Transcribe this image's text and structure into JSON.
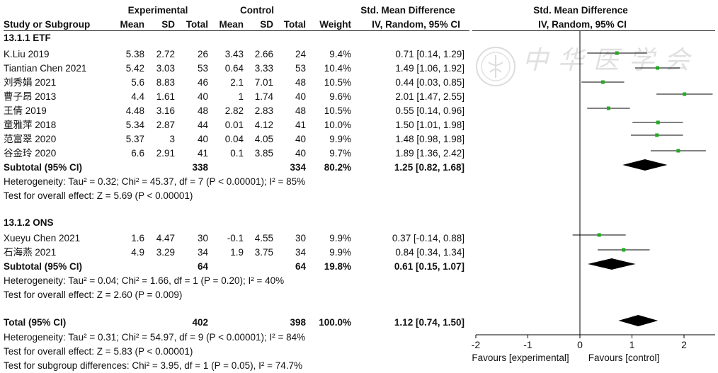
{
  "headers": {
    "experimental": "Experimental",
    "control": "Control",
    "smd_left": "Std. Mean Difference",
    "smd_right": "Std. Mean Difference",
    "study": "Study or Subgroup",
    "mean1": "Mean",
    "sd1": "SD",
    "total1": "Total",
    "mean2": "Mean",
    "sd2": "SD",
    "total2": "Total",
    "weight": "Weight",
    "method_left": "IV, Random, 95% CI",
    "method_right": "IV, Random, 95% CI"
  },
  "groups": [
    {
      "title": "13.1.1 ETF",
      "studies": [
        {
          "name": "K.Liu 2019",
          "m1": "5.38",
          "sd1": "2.72",
          "n1": "26",
          "m2": "3.43",
          "sd2": "2.66",
          "n2": "24",
          "w": "9.4%",
          "ci": "0.71 [0.14, 1.29]"
        },
        {
          "name": "Tiantian Chen 2021",
          "m1": "5.42",
          "sd1": "3.03",
          "n1": "53",
          "m2": "0.64",
          "sd2": "3.33",
          "n2": "53",
          "w": "10.4%",
          "ci": "1.49 [1.06, 1.92]"
        },
        {
          "name": "刘秀娟 2021",
          "m1": "5.6",
          "sd1": "8.83",
          "n1": "46",
          "m2": "2.1",
          "sd2": "7.01",
          "n2": "48",
          "w": "10.5%",
          "ci": "0.44 [0.03, 0.85]"
        },
        {
          "name": "曹子昂 2013",
          "m1": "4.4",
          "sd1": "1.61",
          "n1": "40",
          "m2": "1",
          "sd2": "1.74",
          "n2": "40",
          "w": "9.6%",
          "ci": "2.01 [1.47, 2.55]"
        },
        {
          "name": "王倩 2019",
          "m1": "4.48",
          "sd1": "3.16",
          "n1": "48",
          "m2": "2.82",
          "sd2": "2.83",
          "n2": "48",
          "w": "10.5%",
          "ci": "0.55 [0.14, 0.96]"
        },
        {
          "name": "童雅萍 2018",
          "m1": "5.34",
          "sd1": "2.87",
          "n1": "44",
          "m2": "0.01",
          "sd2": "4.12",
          "n2": "41",
          "w": "10.0%",
          "ci": "1.50 [1.01, 1.98]"
        },
        {
          "name": "范富翠 2020",
          "m1": "5.37",
          "sd1": "3",
          "n1": "40",
          "m2": "0.04",
          "sd2": "4.05",
          "n2": "40",
          "w": "9.9%",
          "ci": "1.48 [0.98, 1.98]"
        },
        {
          "name": "谷金玲 2020",
          "m1": "6.6",
          "sd1": "2.91",
          "n1": "41",
          "m2": "0.1",
          "sd2": "3.85",
          "n2": "40",
          "w": "9.7%",
          "ci": "1.89 [1.36, 2.42]"
        }
      ],
      "subtotal": {
        "label": "Subtotal (95% CI)",
        "n1": "338",
        "n2": "334",
        "w": "80.2%",
        "ci": "1.25 [0.82, 1.68]"
      },
      "heterogeneity": "Heterogeneity: Tau² = 0.32; Chi² = 45.37, df = 7 (P < 0.00001); I² = 85%",
      "overall": "Test for overall effect: Z = 5.69 (P < 0.00001)"
    },
    {
      "title": "13.1.2 ONS",
      "studies": [
        {
          "name": "Xueyu Chen 2021",
          "m1": "1.6",
          "sd1": "4.47",
          "n1": "30",
          "m2": "-0.1",
          "sd2": "4.55",
          "n2": "30",
          "w": "9.9%",
          "ci": "0.37 [-0.14, 0.88]"
        },
        {
          "name": "石海燕 2021",
          "m1": "4.9",
          "sd1": "3.29",
          "n1": "34",
          "m2": "1.9",
          "sd2": "3.75",
          "n2": "34",
          "w": "9.9%",
          "ci": "0.84 [0.34, 1.34]"
        }
      ],
      "subtotal": {
        "label": "Subtotal (95% CI)",
        "n1": "64",
        "n2": "64",
        "w": "19.8%",
        "ci": "0.61 [0.15, 1.07]"
      },
      "heterogeneity": "Heterogeneity: Tau² = 0.04; Chi² = 1.66, df = 1 (P = 0.20); I² = 40%",
      "overall": "Test for overall effect: Z = 2.60 (P = 0.009)"
    }
  ],
  "total": {
    "label": "Total (95% CI)",
    "n1": "402",
    "n2": "398",
    "w": "100.0%",
    "ci": "1.12 [0.74, 1.50]"
  },
  "total_heterogeneity": "Heterogeneity: Tau² = 0.31; Chi² = 54.97, df = 9 (P < 0.00001); I² = 84%",
  "total_overall": "Test for overall effect: Z = 5.83 (P < 0.00001)",
  "subgroup_diff": "Test for subgroup differences: Chi² = 3.95, df = 1 (P = 0.05), I² = 74.7%",
  "watermark": "中华医学会",
  "axis": {
    "ticks": [
      "-2",
      "-1",
      "0",
      "1",
      "2"
    ],
    "favours_left": "Favours [experimental]",
    "favours_right": "Favours [control]"
  },
  "colors": {
    "point": "#22aa22",
    "diamond": "#000000",
    "line": "#000000"
  },
  "chart_data": {
    "type": "scatter",
    "xlim": [
      -2,
      2
    ],
    "studies": [
      {
        "name": "K.Liu 2019",
        "x": 0.71,
        "lo": 0.14,
        "hi": 1.29
      },
      {
        "name": "Tiantian Chen 2021",
        "x": 1.49,
        "lo": 1.06,
        "hi": 1.92
      },
      {
        "name": "刘秀娟 2021",
        "x": 0.44,
        "lo": 0.03,
        "hi": 0.85
      },
      {
        "name": "曹子昂 2013",
        "x": 2.01,
        "lo": 1.47,
        "hi": 2.55
      },
      {
        "name": "王倩 2019",
        "x": 0.55,
        "lo": 0.14,
        "hi": 0.96
      },
      {
        "name": "童雅萍 2018",
        "x": 1.5,
        "lo": 1.01,
        "hi": 1.98
      },
      {
        "name": "范富翠 2020",
        "x": 1.48,
        "lo": 0.98,
        "hi": 1.98
      },
      {
        "name": "谷金玲 2020",
        "x": 1.89,
        "lo": 1.36,
        "hi": 2.42
      },
      {
        "name": "Xueyu Chen 2021",
        "x": 0.37,
        "lo": -0.14,
        "hi": 0.88
      },
      {
        "name": "石海燕 2021",
        "x": 0.84,
        "lo": 0.34,
        "hi": 1.34
      }
    ],
    "diamonds": [
      {
        "name": "Subtotal ETF",
        "x": 1.25,
        "lo": 0.82,
        "hi": 1.68
      },
      {
        "name": "Subtotal ONS",
        "x": 0.61,
        "lo": 0.15,
        "hi": 1.07
      },
      {
        "name": "Total",
        "x": 1.12,
        "lo": 0.74,
        "hi": 1.5
      }
    ]
  }
}
